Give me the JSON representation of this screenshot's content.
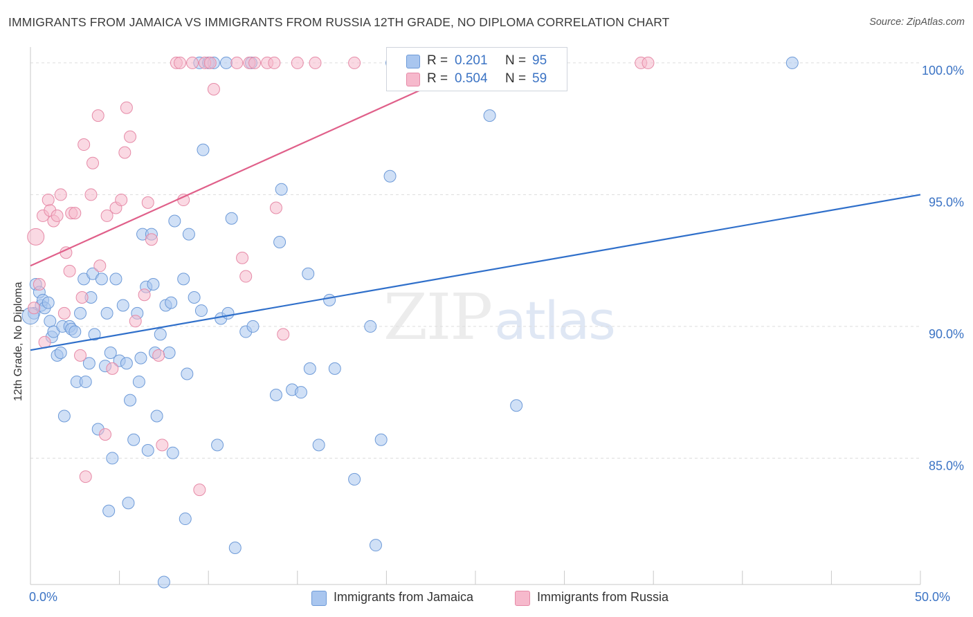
{
  "title": "IMMIGRANTS FROM JAMAICA VS IMMIGRANTS FROM RUSSIA 12TH GRADE, NO DIPLOMA CORRELATION CHART",
  "source": "Source: ZipAtlas.com",
  "watermark": {
    "zip": "ZIP",
    "atlas": "atlas"
  },
  "colors": {
    "jamaica_fill": "#a9c6ef",
    "jamaica_stroke": "#6d9ad8",
    "jamaica_line": "#2f6fca",
    "russia_fill": "#f6b9cc",
    "russia_stroke": "#e68aa7",
    "russia_line": "#e0608a",
    "axis_label": "#3b73c4",
    "grid": "#dcdcdc"
  },
  "legend": {
    "rows": [
      {
        "r_label": "R =",
        "r_value": "0.201",
        "n_label": "N =",
        "n_value": "95"
      },
      {
        "r_label": "R =",
        "r_value": "0.504",
        "n_label": "N =",
        "n_value": "59"
      }
    ]
  },
  "chart_data": {
    "type": "scatter",
    "title": "IMMIGRANTS FROM JAMAICA VS IMMIGRANTS FROM RUSSIA 12TH GRADE, NO DIPLOMA CORRELATION CHART",
    "xlabel": "",
    "ylabel": "12th Grade, No Diploma",
    "xlim": [
      0,
      50
    ],
    "ylim": [
      80.3,
      100.3
    ],
    "x_tick_labels": [
      "0.0%",
      "50.0%"
    ],
    "y_ticks": [
      85,
      90,
      95,
      100
    ],
    "y_tick_labels": [
      "85.0%",
      "90.0%",
      "95.0%",
      "100.0%"
    ],
    "grid": true,
    "legend_position": "top-center",
    "series": [
      {
        "name": "Immigrants from Jamaica",
        "r": 0.201,
        "n": 95,
        "trend": {
          "x0": 0,
          "y0": 89.1,
          "x1": 50,
          "y1": 95.0
        },
        "points": [
          [
            0.2,
            90.5
          ],
          [
            0.3,
            91.6
          ],
          [
            0.5,
            91.3
          ],
          [
            0.6,
            90.8
          ],
          [
            0.7,
            91.0
          ],
          [
            0.8,
            90.7
          ],
          [
            1.0,
            90.9
          ],
          [
            1.1,
            90.2
          ],
          [
            1.2,
            89.6
          ],
          [
            1.3,
            89.8
          ],
          [
            1.5,
            88.9
          ],
          [
            1.7,
            89.0
          ],
          [
            1.8,
            90.0
          ],
          [
            1.9,
            86.6
          ],
          [
            2.2,
            90.0
          ],
          [
            2.3,
            89.9
          ],
          [
            2.5,
            89.8
          ],
          [
            2.6,
            87.9
          ],
          [
            2.8,
            90.5
          ],
          [
            3.0,
            91.8
          ],
          [
            3.1,
            87.9
          ],
          [
            3.3,
            88.6
          ],
          [
            3.4,
            91.1
          ],
          [
            3.5,
            92.0
          ],
          [
            3.6,
            89.7
          ],
          [
            3.8,
            86.1
          ],
          [
            4.0,
            91.8
          ],
          [
            4.2,
            88.5
          ],
          [
            4.3,
            90.5
          ],
          [
            4.4,
            83.0
          ],
          [
            4.5,
            89.0
          ],
          [
            4.6,
            85.0
          ],
          [
            4.8,
            91.8
          ],
          [
            5.0,
            88.7
          ],
          [
            5.2,
            90.8
          ],
          [
            5.4,
            88.6
          ],
          [
            5.5,
            83.3
          ],
          [
            5.6,
            87.2
          ],
          [
            5.8,
            85.7
          ],
          [
            6.0,
            90.5
          ],
          [
            6.1,
            87.9
          ],
          [
            6.2,
            88.8
          ],
          [
            6.3,
            93.5
          ],
          [
            6.5,
            91.5
          ],
          [
            6.6,
            85.3
          ],
          [
            6.8,
            93.5
          ],
          [
            6.9,
            91.6
          ],
          [
            7.0,
            89.0
          ],
          [
            7.1,
            86.6
          ],
          [
            7.3,
            89.7
          ],
          [
            7.5,
            80.3
          ],
          [
            7.6,
            90.8
          ],
          [
            7.8,
            89.0
          ],
          [
            7.9,
            90.9
          ],
          [
            8.0,
            85.2
          ],
          [
            8.1,
            94.0
          ],
          [
            8.6,
            91.8
          ],
          [
            8.7,
            82.7
          ],
          [
            8.8,
            88.2
          ],
          [
            8.9,
            93.5
          ],
          [
            9.2,
            91.1
          ],
          [
            9.5,
            100.0
          ],
          [
            9.6,
            90.6
          ],
          [
            9.7,
            96.7
          ],
          [
            10.0,
            100.0
          ],
          [
            10.3,
            100.0
          ],
          [
            10.5,
            85.5
          ],
          [
            10.7,
            90.3
          ],
          [
            11.0,
            100.0
          ],
          [
            11.1,
            90.5
          ],
          [
            11.3,
            94.1
          ],
          [
            11.5,
            81.6
          ],
          [
            12.1,
            89.8
          ],
          [
            12.4,
            100.0
          ],
          [
            12.5,
            90.0
          ],
          [
            13.8,
            87.4
          ],
          [
            14.0,
            93.2
          ],
          [
            14.1,
            95.2
          ],
          [
            14.7,
            87.6
          ],
          [
            15.2,
            87.5
          ],
          [
            15.6,
            92.0
          ],
          [
            15.7,
            88.4
          ],
          [
            16.2,
            85.5
          ],
          [
            16.8,
            91.0
          ],
          [
            17.1,
            88.4
          ],
          [
            18.2,
            84.2
          ],
          [
            19.1,
            90.0
          ],
          [
            19.4,
            81.7
          ],
          [
            19.7,
            85.7
          ],
          [
            20.2,
            95.7
          ],
          [
            20.3,
            100.0
          ],
          [
            25.8,
            98.0
          ],
          [
            27.3,
            87.0
          ],
          [
            42.8,
            100.0
          ],
          [
            0.0,
            90.4
          ]
        ]
      },
      {
        "name": "Immigrants from Russia",
        "r": 0.504,
        "n": 59,
        "trend": {
          "x0": 0,
          "y0": 92.3,
          "x1": 25.3,
          "y1": 100.0
        },
        "points": [
          [
            0.2,
            90.7
          ],
          [
            0.3,
            93.4
          ],
          [
            0.5,
            91.6
          ],
          [
            0.7,
            94.2
          ],
          [
            0.8,
            89.4
          ],
          [
            1.0,
            94.8
          ],
          [
            1.1,
            94.4
          ],
          [
            1.3,
            94.0
          ],
          [
            1.5,
            94.2
          ],
          [
            1.7,
            95.0
          ],
          [
            1.9,
            90.5
          ],
          [
            2.0,
            92.8
          ],
          [
            2.2,
            92.1
          ],
          [
            2.3,
            94.3
          ],
          [
            2.5,
            94.3
          ],
          [
            2.8,
            88.9
          ],
          [
            2.9,
            91.1
          ],
          [
            3.0,
            96.9
          ],
          [
            3.1,
            84.3
          ],
          [
            3.4,
            95.0
          ],
          [
            3.5,
            96.2
          ],
          [
            3.8,
            98.0
          ],
          [
            3.9,
            92.3
          ],
          [
            4.2,
            85.9
          ],
          [
            4.3,
            94.2
          ],
          [
            4.6,
            88.4
          ],
          [
            4.8,
            94.5
          ],
          [
            5.1,
            94.8
          ],
          [
            5.3,
            96.6
          ],
          [
            5.4,
            98.3
          ],
          [
            5.6,
            97.2
          ],
          [
            5.9,
            90.2
          ],
          [
            6.4,
            91.2
          ],
          [
            6.6,
            94.7
          ],
          [
            6.8,
            93.3
          ],
          [
            7.2,
            88.9
          ],
          [
            7.4,
            85.5
          ],
          [
            8.2,
            100.0
          ],
          [
            8.4,
            100.0
          ],
          [
            8.6,
            94.8
          ],
          [
            9.1,
            100.0
          ],
          [
            9.5,
            83.8
          ],
          [
            9.8,
            100.0
          ],
          [
            10.1,
            100.0
          ],
          [
            10.3,
            99.0
          ],
          [
            11.6,
            100.0
          ],
          [
            11.9,
            92.6
          ],
          [
            12.1,
            91.9
          ],
          [
            12.3,
            100.0
          ],
          [
            12.6,
            100.0
          ],
          [
            13.3,
            100.0
          ],
          [
            13.7,
            100.0
          ],
          [
            13.8,
            94.5
          ],
          [
            14.2,
            89.7
          ],
          [
            15.0,
            100.0
          ],
          [
            16.0,
            100.0
          ],
          [
            18.2,
            100.0
          ],
          [
            34.3,
            100.0
          ],
          [
            34.7,
            100.0
          ]
        ]
      }
    ]
  }
}
